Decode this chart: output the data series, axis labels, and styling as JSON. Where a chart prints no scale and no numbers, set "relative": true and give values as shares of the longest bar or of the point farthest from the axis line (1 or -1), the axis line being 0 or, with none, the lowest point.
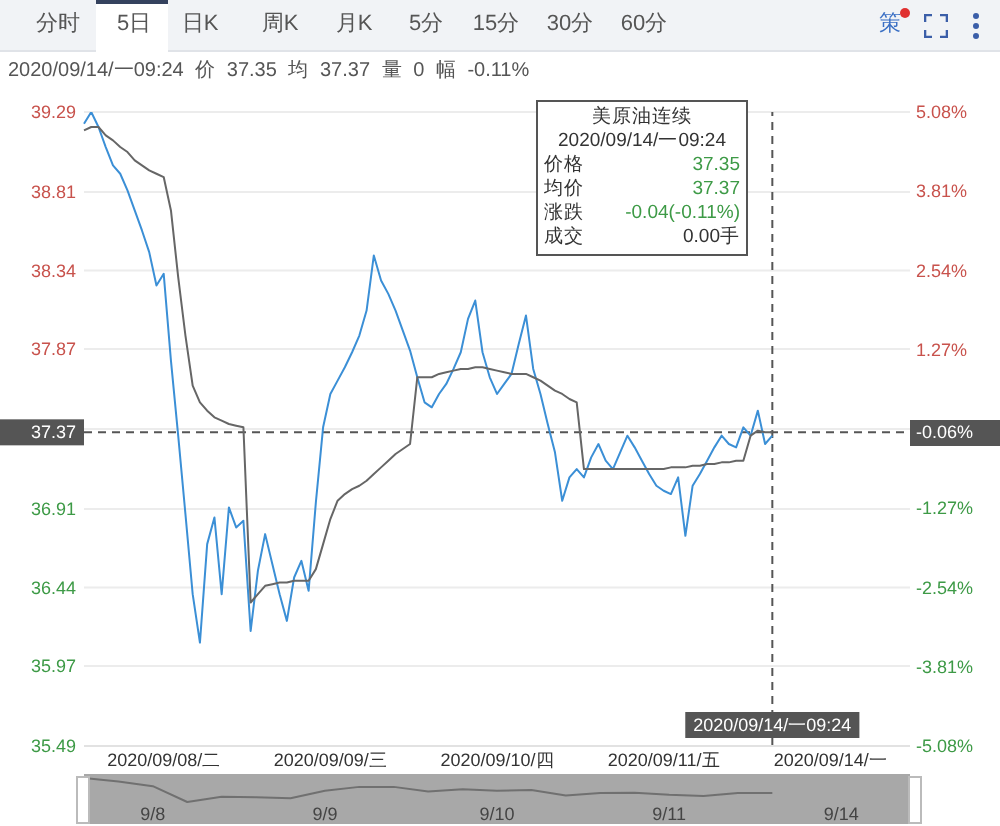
{
  "chart_data": [
    {
      "type": "line",
      "subtitle": "2020/09/14/一09:24 价 37.35 均 37.37 量 0 幅 -0.11%",
      "annotations": [
        "分时",
        "5日",
        "日K",
        "周K",
        "月K",
        "5分",
        "15分",
        "30分",
        "60分",
        "策",
        "美原油连续",
        "2020/09/14/一09:24",
        "价格",
        "均价",
        "涨跌",
        "成交",
        "37.35",
        "37.37",
        "-0.04(-0.11%)",
        "0.00手",
        "-0.06%"
      ],
      "categories": [
        null,
        null,
        null,
        null,
        null,
        null,
        null,
        null,
        null,
        null,
        null,
        "2020/09/08/二",
        null,
        null,
        null,
        null,
        null,
        null,
        null,
        null,
        null,
        null,
        null,
        null,
        null,
        null,
        null,
        null,
        null,
        null,
        null,
        null,
        null,
        null,
        "2020/09/09/三",
        null,
        null,
        null,
        null,
        null,
        null,
        null,
        null,
        null,
        null,
        null,
        null,
        null,
        null,
        null,
        null,
        null,
        null,
        null,
        null,
        null,
        null,
        "2020/09/10/四",
        null,
        null,
        null,
        null,
        null,
        null,
        null,
        null,
        null,
        null,
        null,
        null,
        null,
        null,
        null,
        null,
        null,
        null,
        null,
        null,
        null,
        null,
        "2020/09/11/五",
        null,
        null,
        null,
        null,
        null,
        null,
        null,
        null,
        null,
        null,
        null,
        null,
        null,
        null,
        "2020/09/14/一09:24",
        null,
        null,
        null,
        null,
        null,
        null,
        null,
        "2020/09/14/一",
        null,
        null,
        null,
        null,
        null,
        null,
        null,
        null,
        null,
        null,
        null
      ],
      "series": [
        {
          "color": "#3b8fd6",
          "values": [
            39.22,
            39.29,
            39.2,
            39.08,
            38.97,
            38.92,
            38.82,
            38.7,
            38.58,
            38.45,
            38.25,
            38.32,
            37.8,
            37.35,
            36.88,
            36.4,
            36.11,
            36.7,
            36.86,
            36.4,
            36.92,
            36.8,
            36.84,
            36.18,
            36.54,
            36.76,
            36.58,
            36.4,
            36.24,
            36.5,
            36.6,
            36.42,
            36.95,
            37.4,
            37.6,
            37.68,
            37.76,
            37.85,
            37.95,
            38.1,
            38.43,
            38.28,
            38.2,
            38.1,
            37.98,
            37.86,
            37.7,
            37.55,
            37.52,
            37.6,
            37.66,
            37.75,
            37.85,
            38.05,
            38.16,
            37.85,
            37.7,
            37.6,
            37.66,
            37.72,
            37.9,
            38.07,
            37.75,
            37.6,
            37.42,
            37.25,
            36.96,
            37.1,
            37.15,
            37.1,
            37.22,
            37.3,
            37.2,
            37.15,
            37.25,
            37.35,
            37.28,
            37.2,
            37.12,
            37.05,
            37.02,
            37,
            37.1,
            36.75,
            37.05,
            37.12,
            37.2,
            37.28,
            37.35,
            37.3,
            37.28,
            37.4,
            37.35,
            37.5,
            37.3,
            37.35,
            null,
            null,
            null,
            null,
            null,
            null,
            null,
            null,
            null,
            null,
            null,
            null,
            null,
            null,
            null,
            null,
            null,
            null,
            null
          ]
        },
        {
          "color": "#666666",
          "values": [
            39.18,
            39.2,
            39.2,
            39.15,
            39.12,
            39.08,
            39.05,
            39,
            38.97,
            38.94,
            38.92,
            38.9,
            38.7,
            38.3,
            37.95,
            37.65,
            37.55,
            37.5,
            37.46,
            37.44,
            37.42,
            37.41,
            37.4,
            36.35,
            36.4,
            36.45,
            36.46,
            36.47,
            36.47,
            36.48,
            36.48,
            36.48,
            36.55,
            36.7,
            36.85,
            36.96,
            37,
            37.03,
            37.05,
            37.08,
            37.12,
            37.16,
            37.2,
            37.24,
            37.27,
            37.3,
            37.7,
            37.7,
            37.7,
            37.72,
            37.73,
            37.74,
            37.75,
            37.75,
            37.76,
            37.76,
            37.75,
            37.74,
            37.73,
            37.72,
            37.72,
            37.72,
            37.7,
            37.68,
            37.65,
            37.62,
            37.6,
            37.57,
            37.55,
            37.15,
            37.15,
            37.15,
            37.15,
            37.15,
            37.15,
            37.15,
            37.15,
            37.15,
            37.15,
            37.15,
            37.15,
            37.16,
            37.16,
            37.16,
            37.17,
            37.17,
            37.18,
            37.18,
            37.19,
            37.19,
            37.2,
            37.2,
            37.35,
            37.38,
            37.37,
            37.37,
            null,
            null,
            null,
            null,
            null,
            null,
            null,
            null,
            null,
            null,
            null,
            null,
            null,
            null,
            null,
            null,
            null,
            null,
            null
          ]
        }
      ],
      "ylim": [
        35.49,
        39.29
      ],
      "yticks": [
        39.29,
        38.81,
        38.34,
        37.87,
        {
          "value": 37.39,
          "label": null
        },
        36.91,
        36.44,
        35.97,
        35.49
      ],
      "y2lim": [
        -5.08,
        5.08
      ],
      "y2ticks": [
        {
          "value": 5.08,
          "label": "5.08%"
        },
        {
          "value": 3.81,
          "label": "3.81%"
        },
        {
          "value": 2.54,
          "label": "2.54%"
        },
        {
          "value": 1.27,
          "label": "1.27%"
        },
        {
          "value": 0,
          "label": null
        },
        {
          "value": -1.27,
          "label": "-1.27%"
        },
        {
          "value": -2.54,
          "label": "-2.54%"
        },
        {
          "value": -3.81,
          "label": "-3.81%"
        },
        {
          "value": -5.08,
          "label": "-5.08%"
        }
      ],
      "ref_lines": [
        {
          "axis": "x",
          "value": "2020/09/14/一09:24",
          "line_style": "dashed",
          "color": "#555555"
        },
        {
          "axis": "y",
          "value": 37.37,
          "label": "37.37",
          "line_style": "dashed",
          "color": "#555555"
        }
      ],
      "grid": "y"
    },
    {
      "type": "line",
      "relative": true,
      "color": "#707070",
      "categories": [
        null,
        null,
        "9/8",
        null,
        null,
        null,
        null,
        "9/9",
        null,
        null,
        null,
        null,
        "9/10",
        null,
        null,
        null,
        null,
        "9/11",
        null,
        null,
        null,
        null,
        "9/14",
        null,
        null
      ],
      "values": [
        1,
        0.85,
        0.66,
        0,
        0.22,
        0.2,
        0.16,
        0.47,
        0.63,
        0.63,
        0.44,
        0.53,
        0.47,
        0.5,
        0.27,
        0.37,
        0.39,
        0.3,
        0.25,
        0.37,
        0.37,
        null,
        null,
        null,
        null
      ]
    }
  ]
}
